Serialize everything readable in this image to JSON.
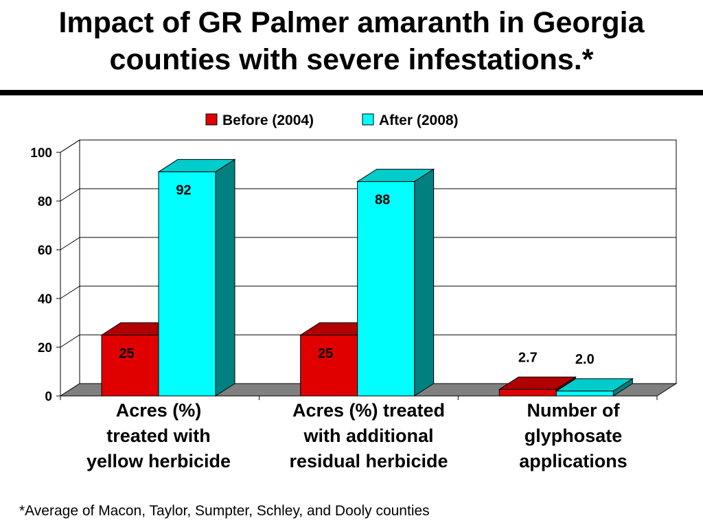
{
  "title_lines": [
    "Impact of GR Palmer amaranth in Georgia",
    "counties with severe infestations.*"
  ],
  "footnote": "*Average of Macon, Taylor, Sumpter, Schley, and Dooly counties",
  "colors": {
    "before_front": "#e00000",
    "before_top": "#b00000",
    "before_side": "#800000",
    "after_front": "#00ffff",
    "after_top": "#00cccc",
    "after_side": "#008080",
    "floor": "#808080"
  },
  "chart_data": {
    "type": "bar",
    "categories": [
      "Acres (%) treated with yellow herbicide",
      "Acres (%) treated with additional residual herbicide",
      "Number of glyphosate applications"
    ],
    "category_lines": [
      [
        "Acres (%)",
        "treated with",
        "yellow herbicide"
      ],
      [
        "Acres (%) treated",
        "with additional",
        "residual herbicide"
      ],
      [
        "Number of",
        "glyphosate",
        "applications"
      ]
    ],
    "series": [
      {
        "name": "Before (2004)",
        "values": [
          25,
          25,
          2.7
        ],
        "labels": [
          "25",
          "25",
          "2.7"
        ]
      },
      {
        "name": "After (2008)",
        "values": [
          92,
          88,
          2.0
        ],
        "labels": [
          "92",
          "88",
          "2.0"
        ]
      }
    ],
    "ylim": [
      0,
      100
    ],
    "yticks": [
      0,
      20,
      40,
      60,
      80,
      100
    ],
    "grid": true,
    "legend": "top",
    "style": "3d"
  }
}
